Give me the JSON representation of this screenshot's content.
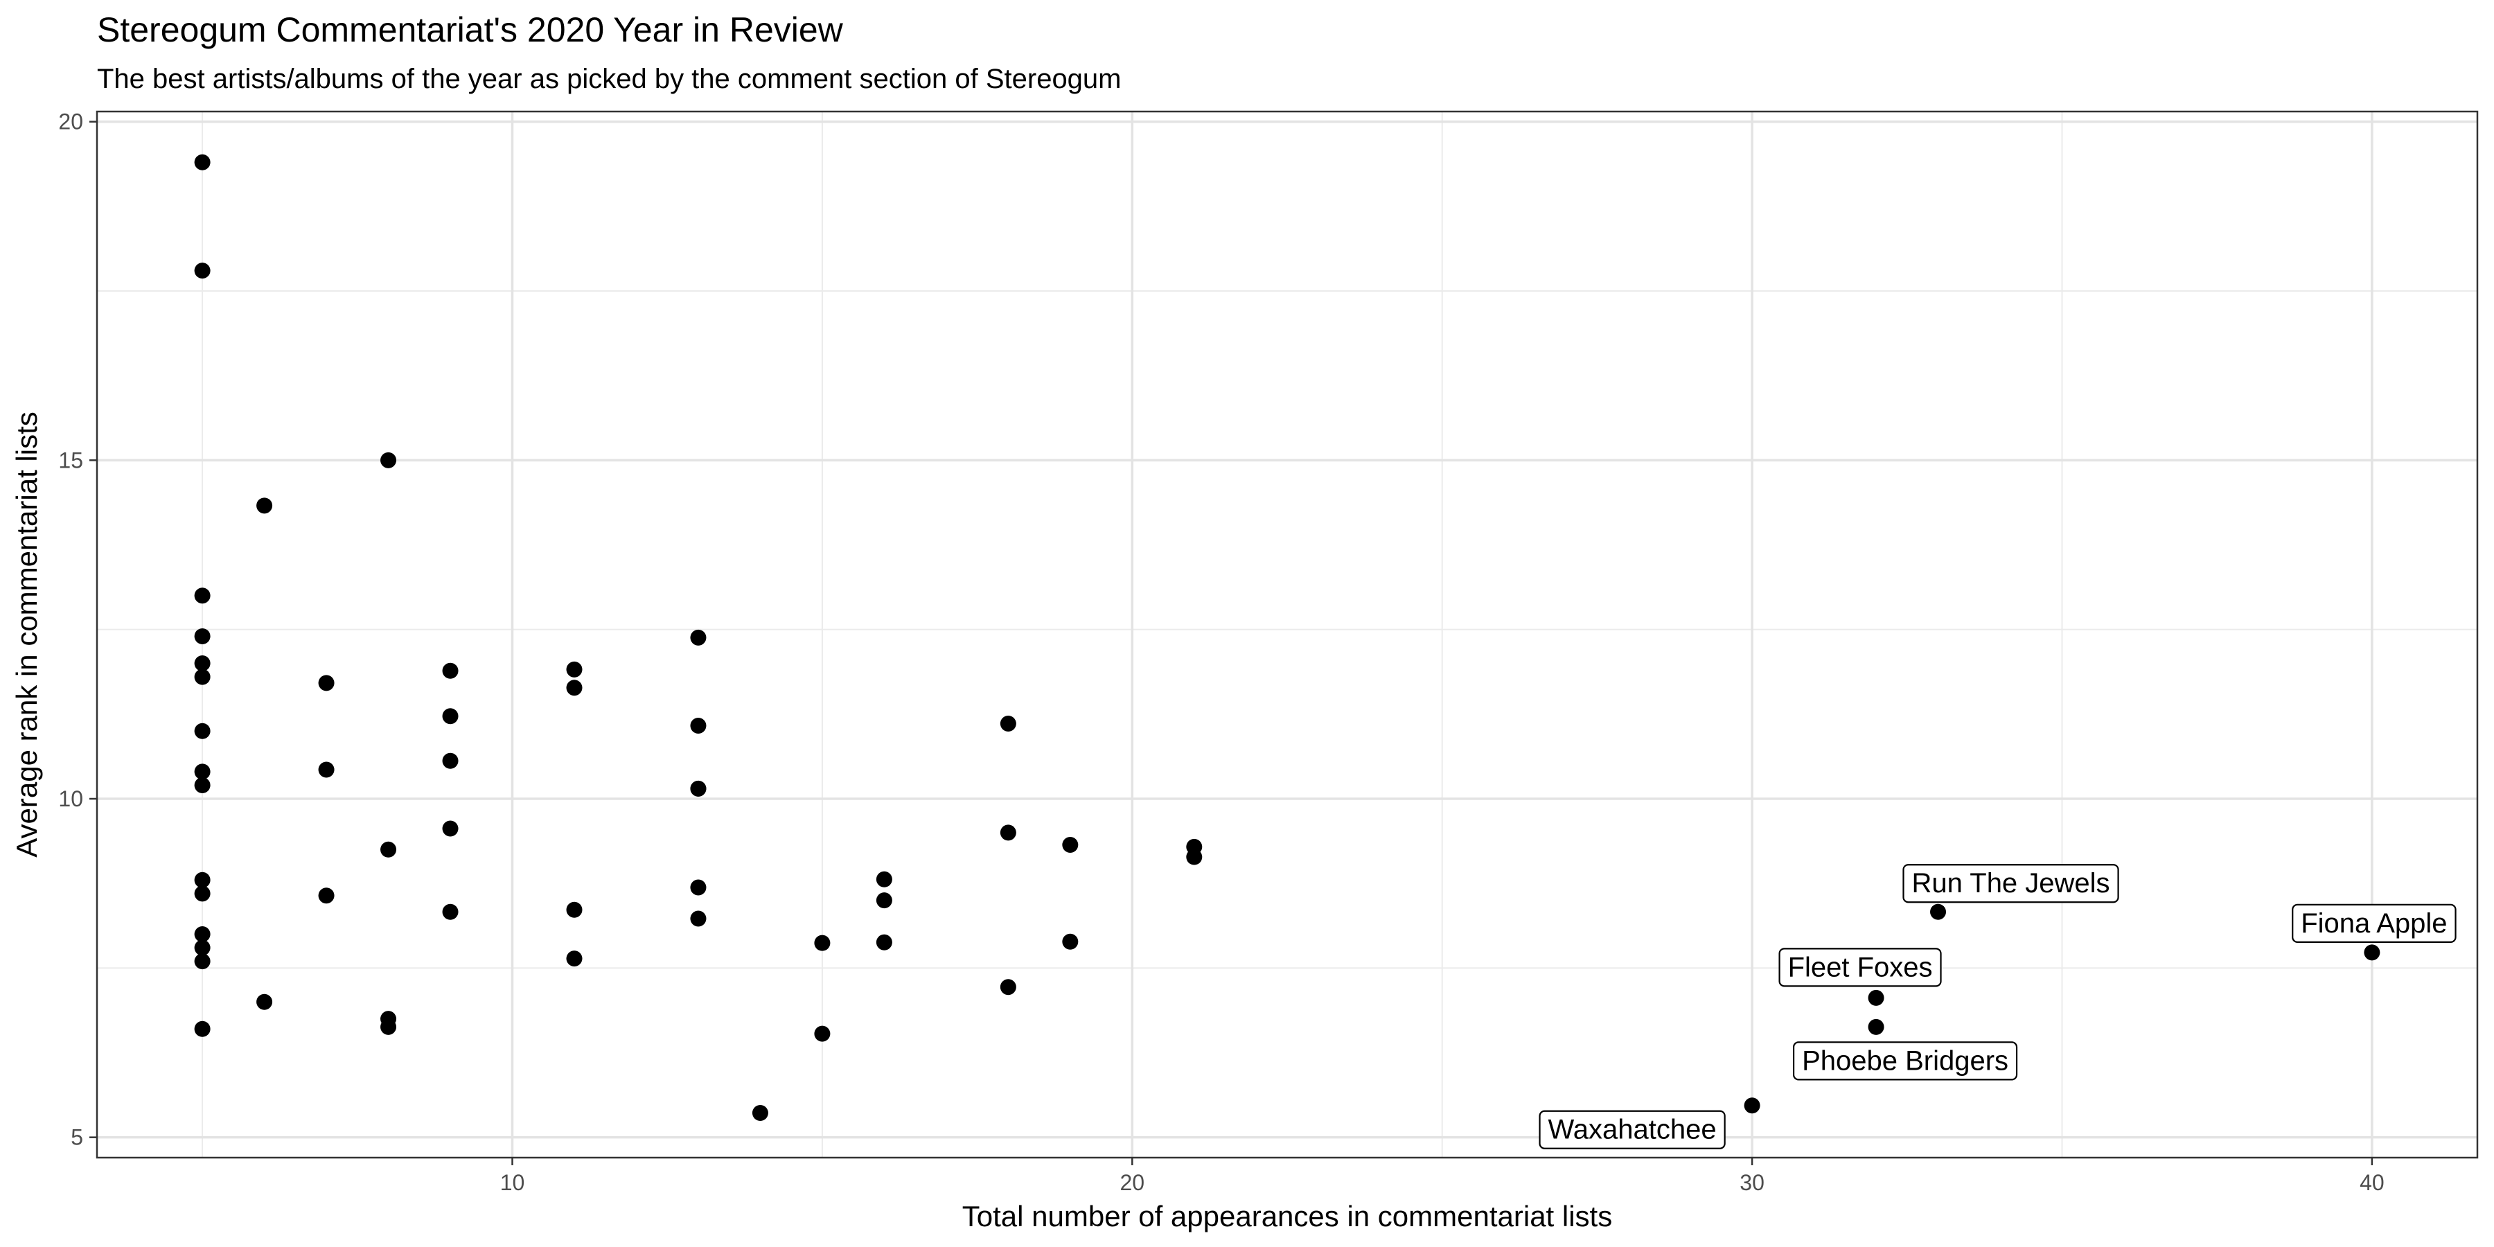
{
  "chart_data": {
    "type": "scatter",
    "title": "Stereogum Commentariat's 2020 Year in Review",
    "subtitle": "The best artists/albums of the year as picked by the comment section of Stereogum",
    "xlabel": "Total number of appearances in commentariat lists",
    "ylabel": "Average rank in commentariat lists",
    "xlim": [
      3.3,
      41.7
    ],
    "ylim": [
      4.7,
      20.15
    ],
    "x_ticks": [
      10,
      20,
      30,
      40
    ],
    "y_ticks": [
      5,
      10,
      15,
      20
    ],
    "grid": true,
    "legend": "none",
    "point_color": "#000000",
    "points": [
      {
        "x": 5,
        "y": 19.4
      },
      {
        "x": 5,
        "y": 17.8
      },
      {
        "x": 5,
        "y": 13.0
      },
      {
        "x": 5,
        "y": 12.4
      },
      {
        "x": 5,
        "y": 12.0
      },
      {
        "x": 5,
        "y": 11.8
      },
      {
        "x": 5,
        "y": 11.0
      },
      {
        "x": 5,
        "y": 10.4
      },
      {
        "x": 5,
        "y": 10.2
      },
      {
        "x": 5,
        "y": 8.8
      },
      {
        "x": 5,
        "y": 8.6
      },
      {
        "x": 5,
        "y": 8.0
      },
      {
        "x": 5,
        "y": 7.8
      },
      {
        "x": 5,
        "y": 7.6
      },
      {
        "x": 5,
        "y": 6.6
      },
      {
        "x": 6,
        "y": 14.33
      },
      {
        "x": 6,
        "y": 7.0
      },
      {
        "x": 7,
        "y": 11.71
      },
      {
        "x": 7,
        "y": 10.43
      },
      {
        "x": 7,
        "y": 8.57
      },
      {
        "x": 8,
        "y": 15.0
      },
      {
        "x": 8,
        "y": 9.25
      },
      {
        "x": 8,
        "y": 6.75
      },
      {
        "x": 8,
        "y": 6.63
      },
      {
        "x": 9,
        "y": 11.89
      },
      {
        "x": 9,
        "y": 11.22
      },
      {
        "x": 9,
        "y": 10.56
      },
      {
        "x": 9,
        "y": 9.56
      },
      {
        "x": 9,
        "y": 8.33
      },
      {
        "x": 11,
        "y": 11.91
      },
      {
        "x": 11,
        "y": 11.64
      },
      {
        "x": 11,
        "y": 8.36
      },
      {
        "x": 11,
        "y": 7.64
      },
      {
        "x": 13,
        "y": 12.38
      },
      {
        "x": 13,
        "y": 11.08
      },
      {
        "x": 13,
        "y": 10.15
      },
      {
        "x": 13,
        "y": 10.15
      },
      {
        "x": 13,
        "y": 8.69
      },
      {
        "x": 13,
        "y": 8.23
      },
      {
        "x": 14,
        "y": 5.36
      },
      {
        "x": 15,
        "y": 7.87
      },
      {
        "x": 15,
        "y": 6.53
      },
      {
        "x": 16,
        "y": 8.81
      },
      {
        "x": 16,
        "y": 8.5
      },
      {
        "x": 16,
        "y": 7.88
      },
      {
        "x": 18,
        "y": 11.11
      },
      {
        "x": 18,
        "y": 9.5
      },
      {
        "x": 18,
        "y": 7.22
      },
      {
        "x": 19,
        "y": 9.32
      },
      {
        "x": 19,
        "y": 7.89
      },
      {
        "x": 21,
        "y": 9.29
      },
      {
        "x": 21,
        "y": 9.14
      },
      {
        "x": 33,
        "y": 8.33,
        "label": "Run The Jewels"
      },
      {
        "x": 40,
        "y": 7.73,
        "label": "Fiona Apple"
      },
      {
        "x": 32,
        "y": 7.06,
        "label": "Fleet Foxes"
      },
      {
        "x": 32,
        "y": 6.63,
        "label": "Phoebe Bridgers"
      },
      {
        "x": 30,
        "y": 5.47,
        "label": "Waxahatchee"
      }
    ]
  }
}
